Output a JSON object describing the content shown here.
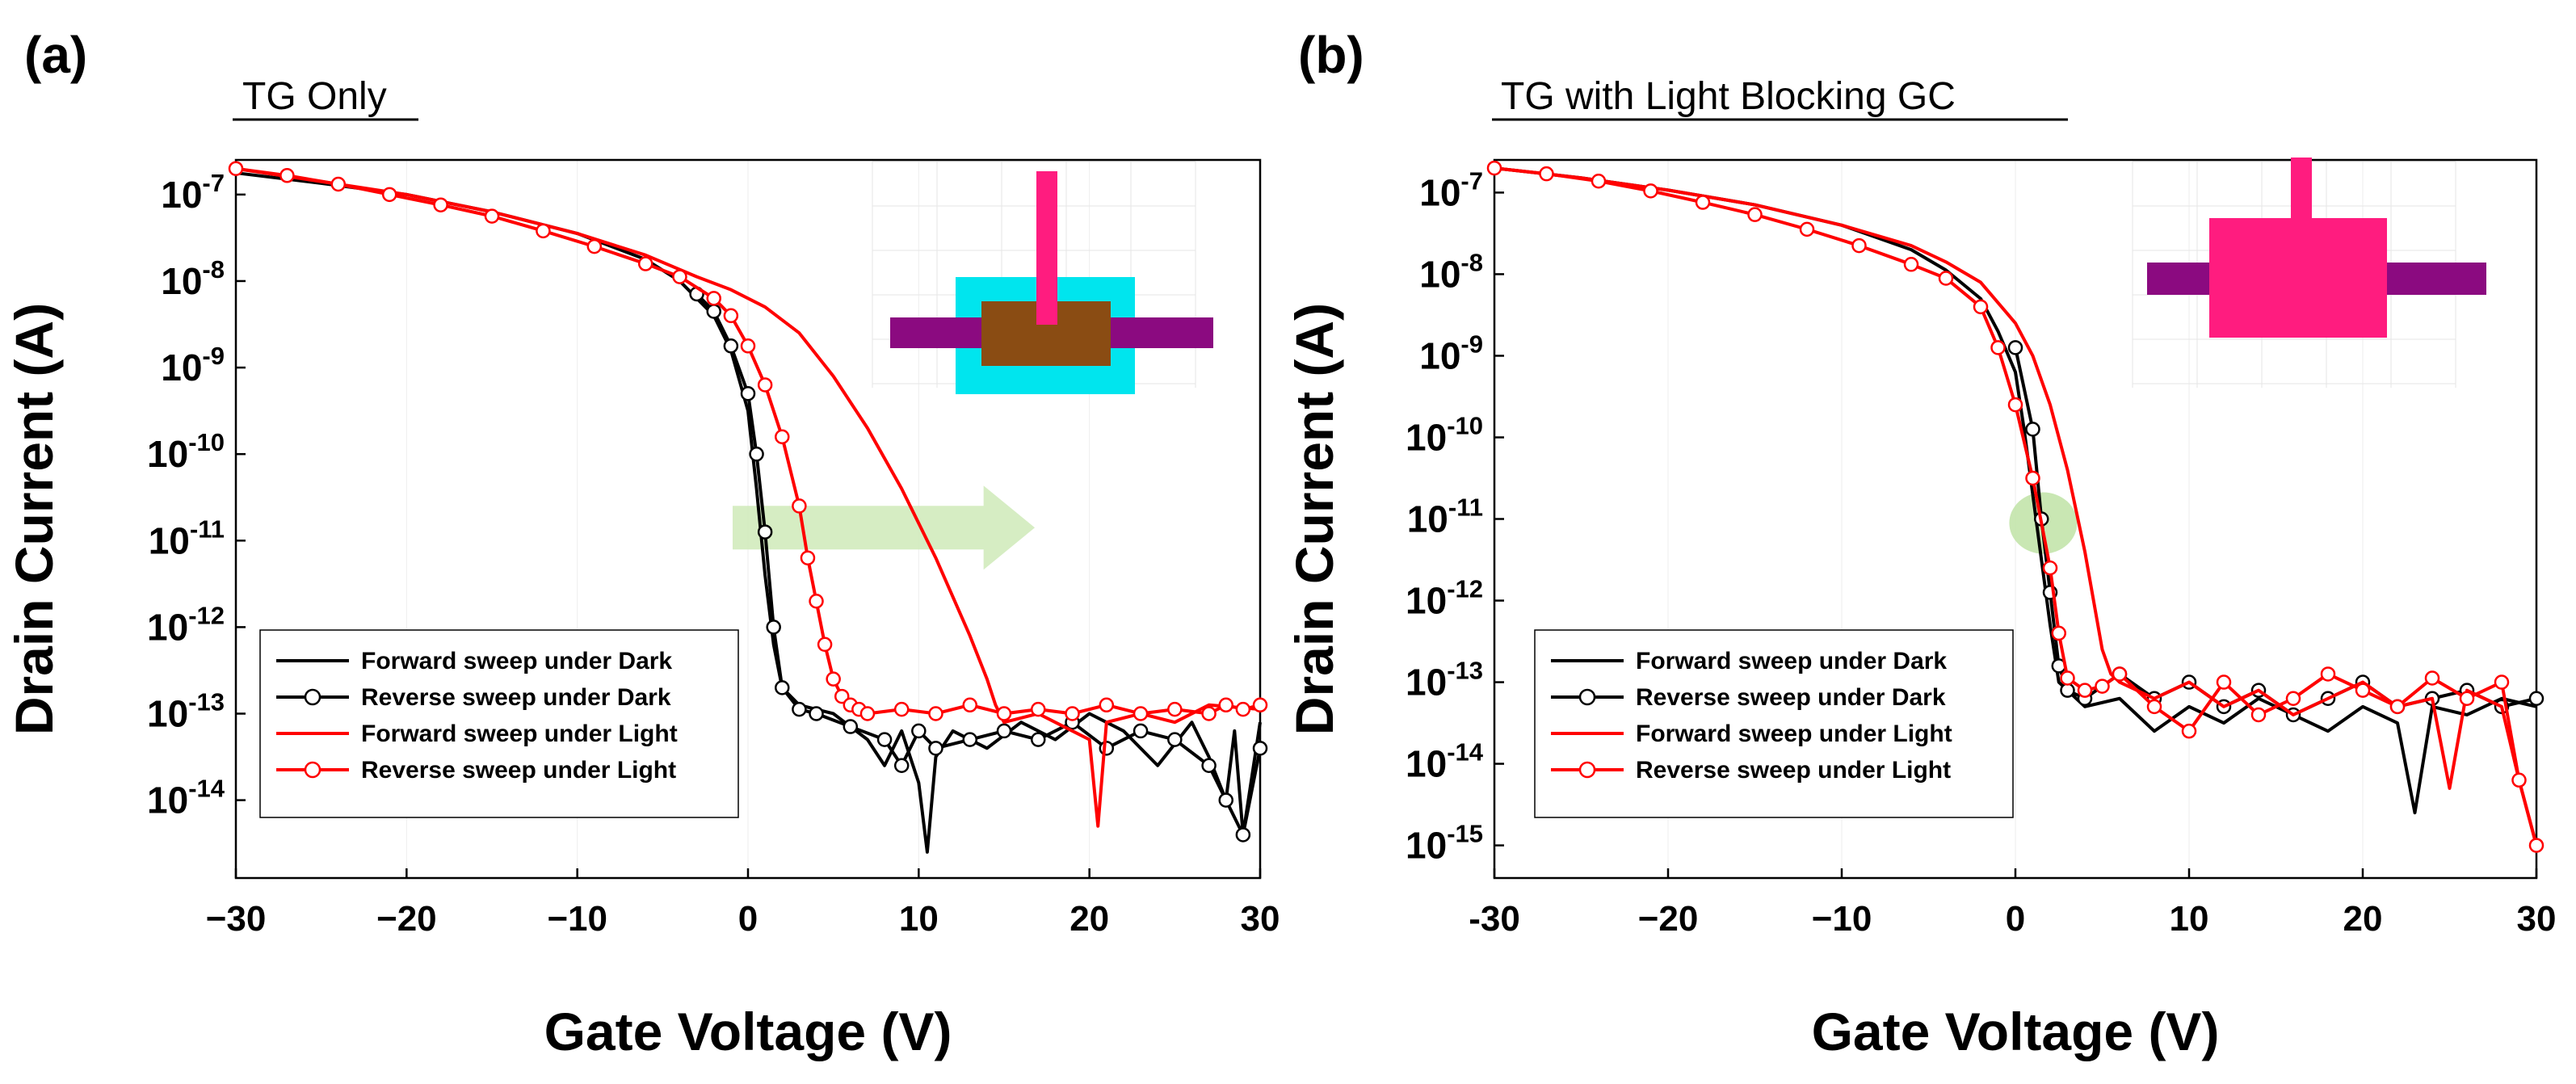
{
  "colors": {
    "dark": "#000000",
    "light": "#ff0000",
    "grid": "#eeeeee",
    "arrow": "#cfeab8",
    "highlight": "#bfe3a6",
    "channel": "#00e5ee",
    "active": "#8a4c13",
    "gate": "#ff1c7f",
    "electrode": "#8b0a80"
  },
  "chart_data": [
    {
      "type": "line",
      "panel_label": "(a)",
      "title": "TG Only",
      "xlabel": "Gate Voltage (V)",
      "ylabel": "Drain Current (A)",
      "xlim": [
        -30,
        30
      ],
      "ylim_log10": [
        -14.9,
        -6.6
      ],
      "y_scale": "log",
      "xticks": [
        "−30",
        "−20",
        "−10",
        "0",
        "10",
        "20",
        "30"
      ],
      "xtick_values": [
        -30,
        -20,
        -10,
        0,
        10,
        20,
        30
      ],
      "ytick_exponents": [
        "-7",
        "-8",
        "-9",
        "-10",
        "-11",
        "-12",
        "-13",
        "-14"
      ],
      "ytick_base": "10",
      "grid": false,
      "legend_position": "bottom-left",
      "legend": [
        "Forward sweep under Dark",
        "Reverse sweep under Dark",
        "Forward sweep under Light",
        "Reverse sweep under Light"
      ],
      "annotation": "shift-arrow",
      "inset": "top-gate-only-device",
      "series": [
        {
          "name": "Forward sweep under Dark",
          "marker": "none",
          "x": [
            -30,
            -25,
            -20,
            -15,
            -10,
            -6,
            -4,
            -2,
            -1,
            0,
            0.5,
            1,
            1.5,
            2,
            3,
            5,
            7,
            8,
            9,
            10,
            10.5,
            11,
            12,
            14,
            16,
            18,
            20,
            22,
            24,
            26,
            27,
            28,
            28.5,
            29,
            30
          ],
          "y": [
            -6.75,
            -6.87,
            -7.0,
            -7.2,
            -7.45,
            -7.75,
            -8.0,
            -8.4,
            -8.8,
            -9.5,
            -10.4,
            -11.4,
            -12.2,
            -12.7,
            -12.9,
            -13.0,
            -13.3,
            -13.6,
            -13.2,
            -13.8,
            -14.6,
            -13.5,
            -13.2,
            -13.4,
            -13.1,
            -13.3,
            -13.0,
            -13.2,
            -13.6,
            -13.1,
            -13.5,
            -14.0,
            -13.2,
            -14.4,
            -13.1
          ]
        },
        {
          "name": "Reverse sweep under Dark",
          "marker": "circle",
          "x": [
            -3,
            -2,
            -1,
            0,
            0.5,
            1,
            1.5,
            2,
            3,
            4,
            6,
            8,
            9,
            10,
            11,
            13,
            15,
            17,
            19,
            21,
            23,
            25,
            27,
            28,
            29,
            30
          ],
          "y": [
            -8.15,
            -8.35,
            -8.75,
            -9.3,
            -10.0,
            -10.9,
            -12.0,
            -12.7,
            -12.95,
            -13.0,
            -13.15,
            -13.3,
            -13.6,
            -13.2,
            -13.4,
            -13.3,
            -13.2,
            -13.3,
            -13.1,
            -13.4,
            -13.2,
            -13.3,
            -13.6,
            -14.0,
            -14.4,
            -13.4
          ]
        },
        {
          "name": "Forward sweep under Light",
          "marker": "none",
          "x": [
            -30,
            -25,
            -20,
            -15,
            -10,
            -6,
            -3,
            -1,
            1,
            3,
            5,
            7,
            9,
            11,
            13,
            14,
            14.5,
            15,
            17,
            19,
            20,
            20.5,
            21,
            23,
            25,
            27,
            30
          ],
          "y": [
            -6.7,
            -6.85,
            -7.0,
            -7.2,
            -7.45,
            -7.7,
            -7.95,
            -8.1,
            -8.3,
            -8.6,
            -9.1,
            -9.7,
            -10.4,
            -11.2,
            -12.1,
            -12.6,
            -12.9,
            -13.1,
            -13.0,
            -13.2,
            -13.3,
            -14.3,
            -13.1,
            -13.0,
            -13.1,
            -12.9,
            -12.95
          ]
        },
        {
          "name": "Reverse sweep under Light",
          "marker": "circle",
          "x": [
            -30,
            -27,
            -24,
            -21,
            -18,
            -15,
            -12,
            -9,
            -6,
            -4,
            -2,
            -1,
            0,
            1,
            2,
            3,
            3.5,
            4,
            4.5,
            5,
            5.5,
            6,
            6.5,
            7,
            9,
            11,
            13,
            15,
            17,
            19,
            21,
            23,
            25,
            27,
            28,
            29,
            30
          ],
          "y": [
            -6.7,
            -6.78,
            -6.88,
            -7.0,
            -7.12,
            -7.25,
            -7.42,
            -7.6,
            -7.8,
            -7.95,
            -8.2,
            -8.4,
            -8.75,
            -9.2,
            -9.8,
            -10.6,
            -11.2,
            -11.7,
            -12.2,
            -12.6,
            -12.8,
            -12.9,
            -12.95,
            -13.0,
            -12.95,
            -13.0,
            -12.9,
            -13.0,
            -12.95,
            -13.0,
            -12.9,
            -13.0,
            -12.95,
            -13.0,
            -12.9,
            -12.95,
            -12.9
          ]
        }
      ]
    },
    {
      "type": "line",
      "panel_label": "(b)",
      "title": "TG with Light Blocking GC",
      "xlabel": "Gate Voltage (V)",
      "ylabel": "Drain Current (A)",
      "xlim": [
        -30,
        30
      ],
      "ylim_log10": [
        -15.4,
        -6.6
      ],
      "y_scale": "log",
      "xticks": [
        "-30",
        "−20",
        "−10",
        "0",
        "10",
        "20",
        "30"
      ],
      "xtick_values": [
        -30,
        -20,
        -10,
        0,
        10,
        20,
        30
      ],
      "ytick_exponents": [
        "-7",
        "-8",
        "-9",
        "-10",
        "-11",
        "-12",
        "-13",
        "-14",
        "-15"
      ],
      "ytick_base": "10",
      "grid": false,
      "legend_position": "bottom-left",
      "legend": [
        "Forward sweep under Dark",
        "Reverse sweep under Dark",
        "Forward sweep under Light",
        "Reverse sweep under Light"
      ],
      "annotation": "onset-highlight",
      "inset": "top-gate-with-light-blocking-gc",
      "series": [
        {
          "name": "Forward sweep under Dark",
          "marker": "none",
          "x": [
            -30,
            -25,
            -20,
            -15,
            -10,
            -6,
            -4,
            -2,
            -1,
            0,
            0.5,
            1,
            1.5,
            2,
            2.5,
            3,
            4,
            6,
            8,
            10,
            12,
            14,
            16,
            18,
            20,
            22,
            23,
            24,
            26,
            28,
            30
          ],
          "y": [
            -6.7,
            -6.82,
            -6.97,
            -7.15,
            -7.4,
            -7.7,
            -7.95,
            -8.3,
            -8.7,
            -9.2,
            -9.9,
            -10.7,
            -11.5,
            -12.3,
            -13.0,
            -13.1,
            -13.3,
            -13.2,
            -13.6,
            -13.3,
            -13.5,
            -13.2,
            -13.4,
            -13.6,
            -13.3,
            -13.5,
            -14.6,
            -13.3,
            -13.4,
            -13.2,
            -13.3
          ]
        },
        {
          "name": "Reverse sweep under Dark",
          "marker": "circle",
          "x": [
            0,
            1,
            1.5,
            2,
            2.5,
            3,
            4,
            6,
            8,
            10,
            12,
            14,
            16,
            18,
            20,
            22,
            24,
            26,
            28,
            30
          ],
          "y": [
            -8.9,
            -9.9,
            -11.0,
            -11.9,
            -12.8,
            -13.1,
            -13.2,
            -12.9,
            -13.2,
            -13.0,
            -13.3,
            -13.1,
            -13.4,
            -13.2,
            -13.0,
            -13.3,
            -13.2,
            -13.1,
            -13.3,
            -13.2
          ]
        },
        {
          "name": "Forward sweep under Light",
          "marker": "none",
          "x": [
            -30,
            -25,
            -20,
            -15,
            -10,
            -6,
            -4,
            -2,
            0,
            1,
            2,
            3,
            4,
            4.5,
            5,
            5.5,
            6,
            8,
            10,
            12,
            14,
            16,
            18,
            20,
            22,
            24,
            25,
            26,
            28,
            29,
            30
          ],
          "y": [
            -6.7,
            -6.82,
            -6.97,
            -7.15,
            -7.4,
            -7.65,
            -7.85,
            -8.1,
            -8.6,
            -9.0,
            -9.6,
            -10.4,
            -11.4,
            -12.0,
            -12.6,
            -12.9,
            -13.0,
            -13.2,
            -13.0,
            -13.3,
            -13.1,
            -13.4,
            -13.2,
            -13.0,
            -13.3,
            -13.2,
            -14.3,
            -13.1,
            -13.3,
            -14.2,
            -15.0
          ]
        },
        {
          "name": "Reverse sweep under Light",
          "marker": "circle",
          "x": [
            -30,
            -27,
            -24,
            -21,
            -18,
            -15,
            -12,
            -9,
            -6,
            -4,
            -2,
            -1,
            0,
            1,
            2,
            2.5,
            3,
            4,
            5,
            6,
            8,
            10,
            12,
            14,
            16,
            18,
            20,
            22,
            24,
            26,
            28,
            29,
            30
          ],
          "y": [
            -6.7,
            -6.77,
            -6.86,
            -6.98,
            -7.12,
            -7.27,
            -7.45,
            -7.65,
            -7.88,
            -8.05,
            -8.4,
            -8.9,
            -9.6,
            -10.5,
            -11.6,
            -12.4,
            -12.95,
            -13.1,
            -13.05,
            -12.9,
            -13.3,
            -13.6,
            -13.0,
            -13.4,
            -13.2,
            -12.9,
            -13.1,
            -13.3,
            -12.95,
            -13.2,
            -13.0,
            -14.2,
            -15.0
          ]
        }
      ]
    }
  ]
}
